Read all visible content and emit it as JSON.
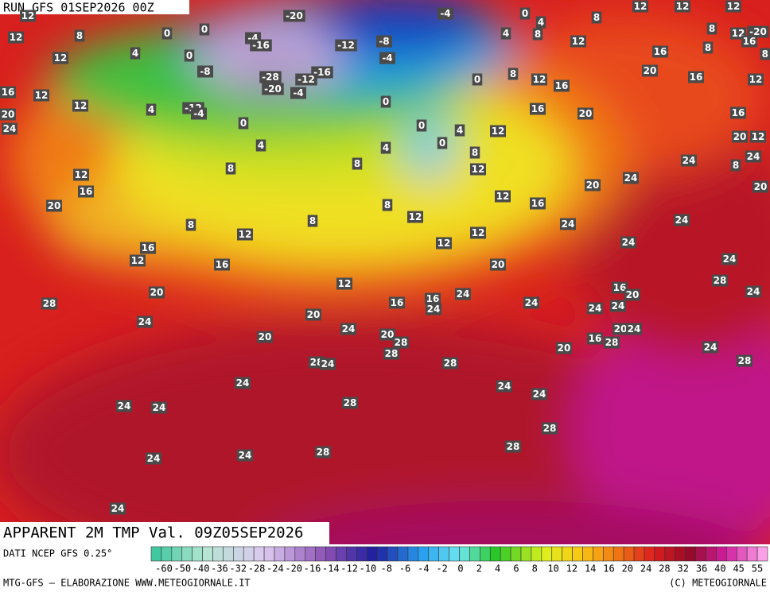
{
  "header": {
    "run": "RUN GFS 01SEP2026 00Z"
  },
  "map_labels": [
    12,
    12,
    8,
    0,
    0,
    -20,
    -4,
    0,
    4,
    12,
    12,
    12,
    8,
    12,
    -20,
    -4,
    -16,
    -12,
    -8,
    4,
    8,
    8,
    12,
    16,
    16,
    8,
    8,
    12,
    4,
    0,
    -4,
    -8,
    -16,
    -28,
    -12,
    -20,
    -4,
    0,
    8,
    12,
    16,
    20,
    16,
    12,
    16,
    12,
    12,
    4,
    -12,
    -4,
    0,
    16,
    20,
    16,
    20,
    24,
    0,
    0,
    4,
    12,
    0,
    4,
    4,
    8,
    20,
    12,
    8,
    8,
    12,
    24,
    24,
    8,
    12,
    16,
    20,
    24,
    20,
    12,
    16,
    20,
    8,
    12,
    24,
    8,
    8,
    24,
    12,
    12,
    12,
    24,
    16,
    12,
    16,
    20,
    24,
    28,
    12,
    16,
    20,
    24,
    24,
    20,
    16,
    16,
    24,
    24,
    28,
    24,
    24,
    20,
    24,
    24,
    20,
    20,
    24,
    20,
    16,
    28,
    28,
    24,
    20,
    28,
    28,
    28,
    24,
    28,
    24,
    24,
    24,
    28,
    24,
    24,
    28,
    28,
    28,
    24,
    24,
    24
  ],
  "footer": {
    "title": "APPARENT 2M TMP Val. 09Z05SEP2026",
    "source": "DATI NCEP GFS 0.25°",
    "credit": "MTG-GFS — ELABORAZIONE WWW.METEOGIORNALE.IT",
    "copyright": "(C) METEOGIORNALE"
  },
  "colorbar": {
    "ticks": [
      -60,
      -50,
      -40,
      -36,
      -32,
      -28,
      -24,
      -20,
      -16,
      -14,
      -12,
      -10,
      -8,
      -6,
      -4,
      -2,
      0,
      2,
      4,
      6,
      8,
      10,
      12,
      14,
      16,
      20,
      24,
      28,
      32,
      36,
      40,
      45,
      55
    ]
  }
}
